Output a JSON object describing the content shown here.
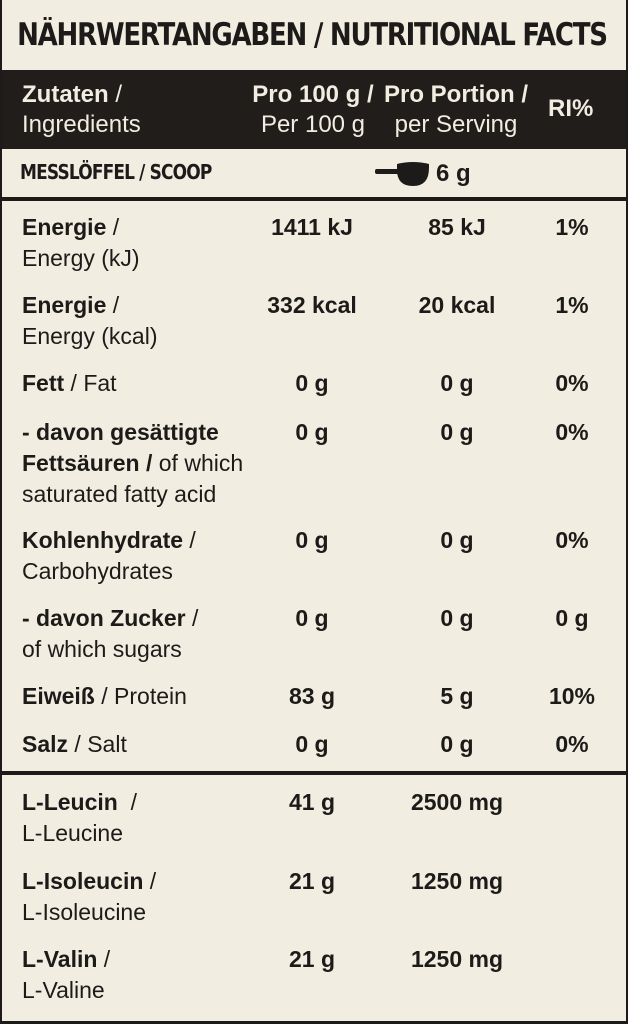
{
  "title": "NÄHRWERTANGABEN / NUTRITIONAL FACTS",
  "header": {
    "col1_bold": "Zutaten",
    "col1_sep": " /",
    "col1_sub": "Ingredients",
    "col2_line1": "Pro 100 g /",
    "col2_line2": "Per 100 g",
    "col3_line1": "Pro Portion /",
    "col3_line2": "per Serving",
    "col4": "RI%"
  },
  "scoop": {
    "label": "MESSLÖFFEL / SCOOP",
    "value": "6 g"
  },
  "rows": [
    {
      "bold": "Energie",
      "sep": " /",
      "rest": "",
      "line2": "Energy (kJ)",
      "line3": "",
      "v1": "1411 kJ",
      "v2": "85 kJ",
      "v3": "1%"
    },
    {
      "bold": "Energie",
      "sep": " /",
      "rest": "",
      "line2": "Energy (kcal)",
      "line3": "",
      "v1": "332 kcal",
      "v2": "20 kcal",
      "v3": "1%"
    },
    {
      "bold": "Fett",
      "sep": " / ",
      "rest": "Fat",
      "line2": "",
      "line3": "",
      "v1": "0 g",
      "v2": "0 g",
      "v3": "0%"
    },
    {
      "bold": "- davon gesättigte",
      "sep": "",
      "rest": "",
      "line2_bold": "Fettsäuren /",
      "line2": " of which",
      "line3": "saturated fatty acid",
      "v1": "0 g",
      "v2": "0 g",
      "v3": "0%"
    },
    {
      "bold": "Kohlenhydrate",
      "sep": " /",
      "rest": "",
      "line2": "Carbohydrates",
      "line3": "",
      "v1": "0 g",
      "v2": "0 g",
      "v3": "0%"
    },
    {
      "bold": "- davon Zucker",
      "sep": " /",
      "rest": "",
      "line2": "of which sugars",
      "line3": "",
      "v1": "0 g",
      "v2": "0 g",
      "v3": "0 g"
    },
    {
      "bold": "Eiweiß",
      "sep": " / ",
      "rest": "Protein",
      "line2": "",
      "line3": "",
      "v1": "83 g",
      "v2": "5 g",
      "v3": "10%"
    },
    {
      "bold": "Salz",
      "sep": " / ",
      "rest": "Salt",
      "line2": "",
      "line3": "",
      "v1": "0 g",
      "v2": "0 g",
      "v3": "0%"
    }
  ],
  "amino": [
    {
      "bold": "L-Leucin",
      "sep": "  /",
      "line2": "L-Leucine",
      "v1": "41 g",
      "v2": "2500 mg"
    },
    {
      "bold": "L-Isoleucin",
      "sep": " /",
      "line2": "L-Isoleucine",
      "v1": "21 g",
      "v2": "1250 mg"
    },
    {
      "bold": "L-Valin",
      "sep": " /",
      "line2": "L-Valine",
      "v1": "21 g",
      "v2": "1250 mg"
    }
  ]
}
